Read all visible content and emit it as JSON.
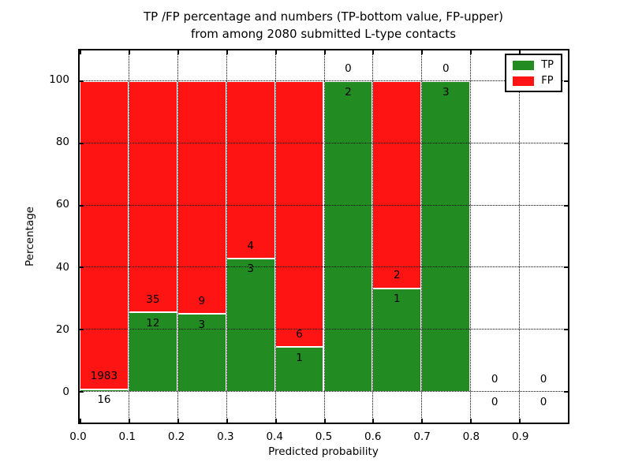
{
  "title": {
    "line1": "TP /FP percentage and numbers (TP-bottom value, FP-upper)",
    "line2": "from among 2080 submitted L-type contacts"
  },
  "colors": {
    "tp": "#228b22",
    "fp": "#ff1414",
    "grid": "#000000",
    "background": "#ffffff"
  },
  "chart_data": {
    "type": "bar",
    "stacked": true,
    "title_lines": [
      "TP /FP percentage and numbers (TP-bottom value, FP-upper)",
      "from among 2080 submitted L-type contacts"
    ],
    "xlabel": "Predicted probability",
    "ylabel": "Percentage",
    "xlim": [
      0.0,
      1.0
    ],
    "ylim": [
      -10,
      110
    ],
    "xticks": [
      "0.0",
      "0.1",
      "0.2",
      "0.3",
      "0.4",
      "0.5",
      "0.6",
      "0.7",
      "0.8",
      "0.9"
    ],
    "yticks": [
      0,
      20,
      40,
      60,
      80,
      100
    ],
    "grid": "dotted",
    "total_contacts": 2080,
    "legend": {
      "position": "upper right",
      "entries": [
        {
          "label": "TP",
          "color": "#228b22"
        },
        {
          "label": "FP",
          "color": "#ff1414"
        }
      ]
    },
    "bins": [
      {
        "range": [
          0.0,
          0.1
        ],
        "tp": 16,
        "fp": 1983
      },
      {
        "range": [
          0.1,
          0.2
        ],
        "tp": 12,
        "fp": 35
      },
      {
        "range": [
          0.2,
          0.3
        ],
        "tp": 3,
        "fp": 9
      },
      {
        "range": [
          0.3,
          0.4
        ],
        "tp": 3,
        "fp": 4
      },
      {
        "range": [
          0.4,
          0.5
        ],
        "tp": 1,
        "fp": 6
      },
      {
        "range": [
          0.5,
          0.6
        ],
        "tp": 2,
        "fp": 0
      },
      {
        "range": [
          0.6,
          0.7
        ],
        "tp": 1,
        "fp": 2
      },
      {
        "range": [
          0.7,
          0.8
        ],
        "tp": 3,
        "fp": 0
      },
      {
        "range": [
          0.8,
          0.9
        ],
        "tp": 0,
        "fp": 0
      },
      {
        "range": [
          0.9,
          1.0
        ],
        "tp": 0,
        "fp": 0
      }
    ]
  }
}
